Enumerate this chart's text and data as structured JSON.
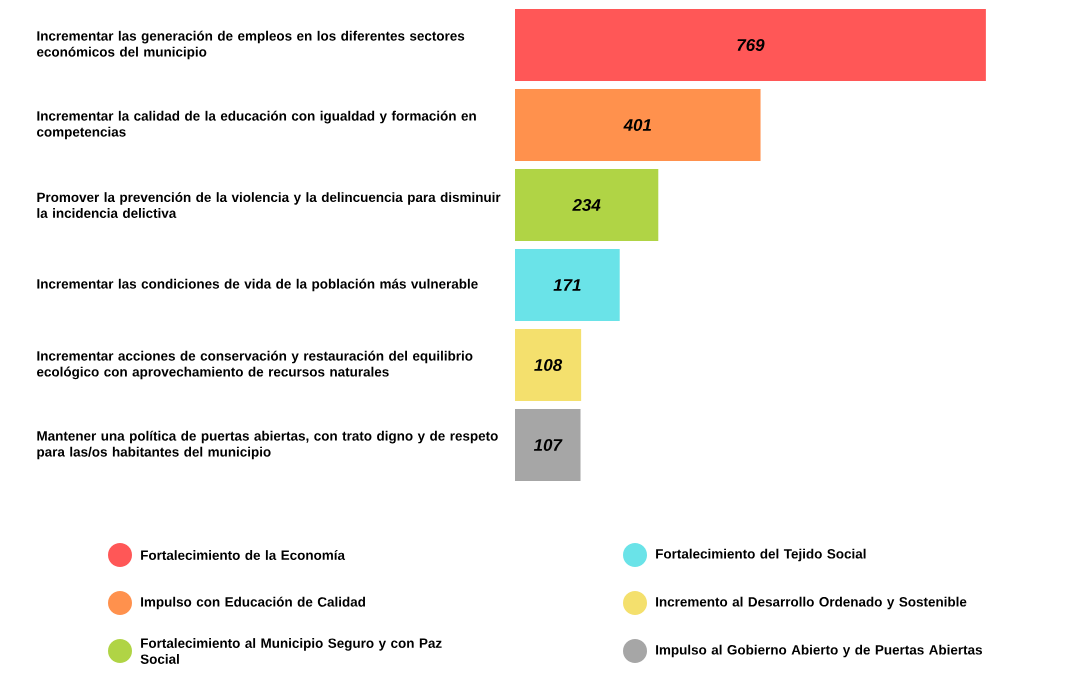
{
  "chart_data": {
    "type": "bar",
    "orientation": "horizontal",
    "data_labels": true,
    "legend": "bottom",
    "categories": [
      "Incrementar las generación de empleos en los diferentes sectores económicos del municipio",
      "Incrementar la calidad de la educación con igualdad y formación en competencias",
      "Promover la prevención de la violencia y la delincuencia para disminuir la incidencia delictiva",
      "Incrementar las condiciones de vida de la población más vulnerable",
      "Incrementar acciones de conservación y restauración del equilibrio ecológico con aprovechamiento de recursos naturales",
      "Mantener una política de puertas abiertas, con trato digno y de respeto para las/os habitantes del municipio"
    ],
    "series": [
      {
        "name": "Fortalecimiento de la Economía",
        "color": "#ff5757",
        "values": [
          769,
          null,
          null,
          null,
          null,
          null
        ]
      },
      {
        "name": "Impulso con Educación de Calidad",
        "color": "#ff914d",
        "values": [
          null,
          401,
          null,
          null,
          null,
          null
        ]
      },
      {
        "name": "Fortalecimiento al Municipio Seguro y con Paz Social",
        "color": "#b0d445",
        "values": [
          null,
          null,
          234,
          null,
          null,
          null
        ]
      },
      {
        "name": "Fortalecimiento del Tejido Social",
        "color": "#6ae3e8",
        "values": [
          null,
          null,
          null,
          171,
          null,
          null
        ]
      },
      {
        "name": "Incremento al Desarrollo Ordenado y Sostenible",
        "color": "#f4e06d",
        "values": [
          null,
          null,
          null,
          null,
          108,
          null
        ]
      },
      {
        "name": "Impulso al Gobierno Abierto y de Puertas Abiertas",
        "color": "#a6a6a6",
        "values": [
          null,
          null,
          null,
          null,
          null,
          107
        ]
      }
    ]
  }
}
